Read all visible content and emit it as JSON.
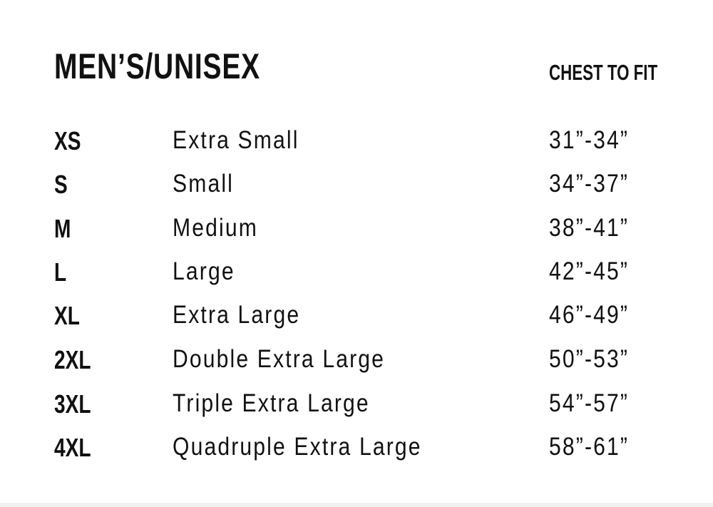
{
  "title": "MEN’S/UNISEX",
  "column_header": "CHEST TO FIT",
  "rows": [
    {
      "code": "XS",
      "label": "Extra Small",
      "chest": "31”-34”"
    },
    {
      "code": "S",
      "label": "Small",
      "chest": "34”-37”"
    },
    {
      "code": "M",
      "label": "Medium",
      "chest": "38”-41”"
    },
    {
      "code": "L",
      "label": "Large",
      "chest": "42”-45”"
    },
    {
      "code": "XL",
      "label": "Extra Large",
      "chest": "46”-49”"
    },
    {
      "code": "2XL",
      "label": "Double Extra Large",
      "chest": "50”-53”"
    },
    {
      "code": "3XL",
      "label": "Triple Extra Large",
      "chest": "54”-57”"
    },
    {
      "code": "4XL",
      "label": "Quadruple Extra Large",
      "chest": "58”-61”"
    }
  ]
}
